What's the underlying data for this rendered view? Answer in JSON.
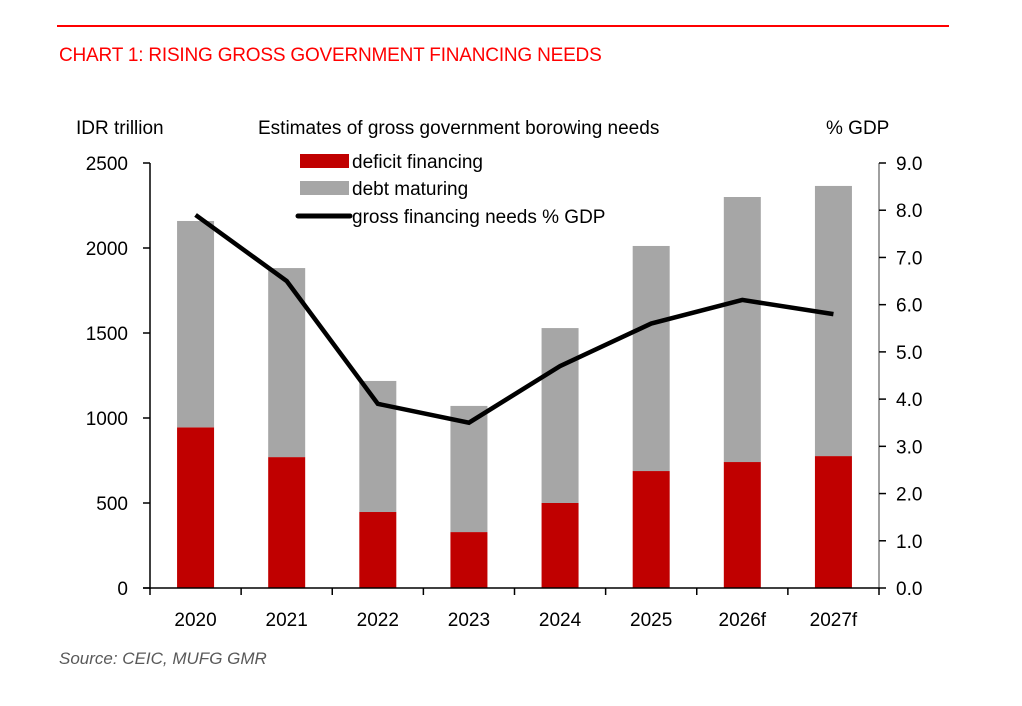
{
  "header": {
    "title": "CHART 1: RISING GROSS GOVERNMENT FINANCING NEEDS"
  },
  "footer": {
    "source": "Source: CEIC, MUFG GMR"
  },
  "chart_data": {
    "type": "bar",
    "stacked": true,
    "title": "Estimates of gross government borowing needs",
    "ylabel_left": "IDR trillion",
    "ylabel_right": "% GDP",
    "xlabel": "",
    "categories": [
      "2020",
      "2021",
      "2022",
      "2023",
      "2024",
      "2025",
      "2026f",
      "2027f"
    ],
    "y_left": {
      "min": 0,
      "max": 2500,
      "step": 500,
      "ticks": [
        "0",
        "500",
        "1000",
        "1500",
        "2000",
        "2500"
      ]
    },
    "y_right": {
      "min": 0,
      "max": 9,
      "step": 1,
      "ticks": [
        "0.0",
        "1.0",
        "2.0",
        "3.0",
        "4.0",
        "5.0",
        "6.0",
        "7.0",
        "8.0",
        "9.0"
      ]
    },
    "grid": false,
    "legend_position": "top-center",
    "colors": {
      "deficit": "#c00000",
      "debt": "#a6a6a6",
      "line": "#000000"
    },
    "series": [
      {
        "name": "deficit financing",
        "type": "bar",
        "axis": "left",
        "values": [
          945,
          770,
          447,
          329,
          500,
          688,
          741,
          776
        ]
      },
      {
        "name": "debt maturing",
        "type": "bar",
        "axis": "left",
        "values": [
          1214,
          1112,
          771,
          742,
          1029,
          1324,
          1559,
          1589
        ]
      },
      {
        "name": "gross financing needs % GDP",
        "type": "line",
        "axis": "right",
        "values": [
          7.9,
          6.5,
          3.9,
          3.5,
          4.7,
          5.6,
          6.1,
          5.8
        ]
      }
    ]
  }
}
